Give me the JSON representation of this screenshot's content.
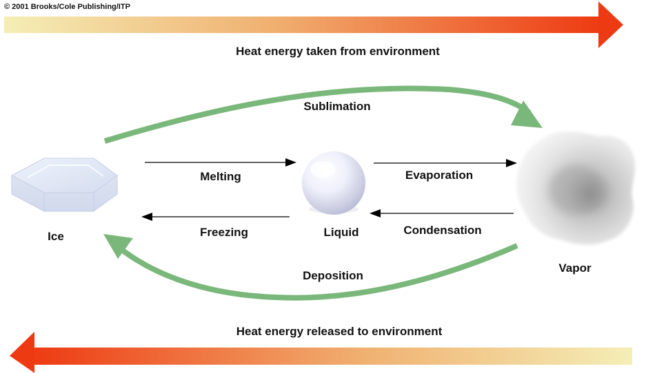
{
  "copyright": "© 2001 Brooks/Cole Publishing/ITP",
  "heat_taken": "Heat energy taken from environment",
  "heat_released": "Heat energy released to environment",
  "states": {
    "ice": "Ice",
    "liquid": "Liquid",
    "vapor": "Vapor"
  },
  "transitions": {
    "sublimation": "Sublimation",
    "melting": "Melting",
    "evaporation": "Evaporation",
    "freezing": "Freezing",
    "condensation": "Condensation",
    "deposition": "Deposition"
  },
  "colors": {
    "heat_arrow_light": "#f3ecb0",
    "heat_arrow_dark": "#ee3a12",
    "curved_arrow": "#7ab77a",
    "straight_arrow": "#000000"
  },
  "icons": {
    "ice": "hexagonal-ice-crystal-icon",
    "liquid": "water-droplet-sphere-icon",
    "vapor": "vapor-cloud-icon"
  }
}
